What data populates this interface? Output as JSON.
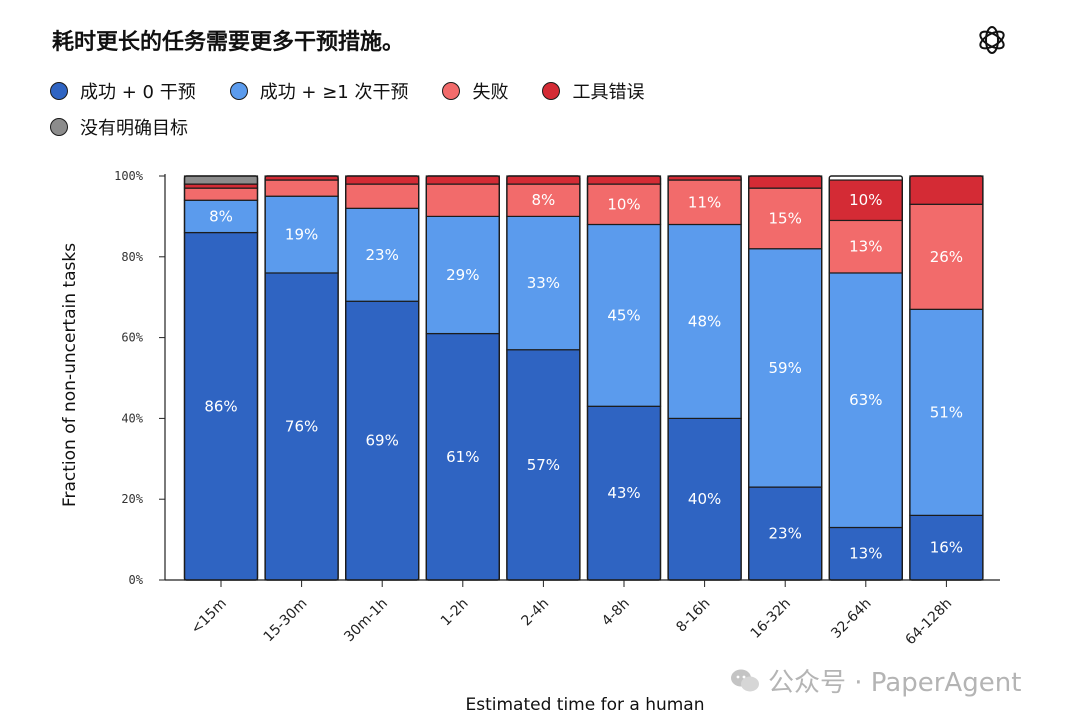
{
  "title": "耗时更长的任务需要更多干预措施。",
  "legend": [
    {
      "name": "成功 + 0 干预",
      "color": "#2f64c2"
    },
    {
      "name": "成功 + ≥1 次干预",
      "color": "#5b9bed"
    },
    {
      "name": "失败",
      "color": "#f26b6b"
    },
    {
      "name": "工具错误",
      "color": "#d42b35"
    },
    {
      "name": "没有明确目标",
      "color": "#8c8c8c"
    }
  ],
  "watermark": "公众号 · PaperAgent",
  "chart_data": {
    "type": "bar",
    "stacked": true,
    "xlabel": "Estimated time for a human",
    "ylabel": "Fraction of non-uncertain tasks",
    "ylim": [
      0,
      100
    ],
    "y_ticks": [
      "0%",
      "20%",
      "40%",
      "60%",
      "80%",
      "100%"
    ],
    "categories": [
      "<15m",
      "15-30m",
      "30m-1h",
      "1-2h",
      "2-4h",
      "4-8h",
      "8-16h",
      "16-32h",
      "32-64h",
      "64-128h"
    ],
    "series": [
      {
        "name": "成功 + 0 干预",
        "color": "#2f64c2",
        "values": [
          86,
          76,
          69,
          61,
          57,
          43,
          40,
          23,
          13,
          16
        ],
        "labels": [
          "86%",
          "76%",
          "69%",
          "61%",
          "57%",
          "43%",
          "40%",
          "23%",
          "13%",
          "16%"
        ]
      },
      {
        "name": "成功 + ≥1 次干预",
        "color": "#5b9bed",
        "values": [
          8,
          19,
          23,
          29,
          33,
          45,
          48,
          59,
          63,
          51
        ],
        "labels": [
          "8%",
          "19%",
          "23%",
          "29%",
          "33%",
          "45%",
          "48%",
          "59%",
          "63%",
          "51%"
        ]
      },
      {
        "name": "失败",
        "color": "#f26b6b",
        "values": [
          3,
          4,
          6,
          8,
          8,
          10,
          11,
          15,
          13,
          26
        ],
        "labels": [
          "",
          "",
          "",
          "",
          "8%",
          "10%",
          "11%",
          "15%",
          "13%",
          "26%"
        ]
      },
      {
        "name": "工具错误",
        "color": "#d42b35",
        "values": [
          1,
          1,
          2,
          2,
          2,
          2,
          1,
          3,
          10,
          7
        ],
        "labels": [
          "",
          "",
          "",
          "",
          "",
          "",
          "",
          "",
          "10%",
          ""
        ]
      },
      {
        "name": "没有明确目标",
        "color": "#8c8c8c",
        "values": [
          2,
          0,
          0,
          0,
          0,
          0,
          0,
          0,
          0,
          0
        ],
        "labels": [
          "",
          "",
          "",
          "",
          "",
          "",
          "",
          "",
          "",
          ""
        ]
      }
    ]
  }
}
